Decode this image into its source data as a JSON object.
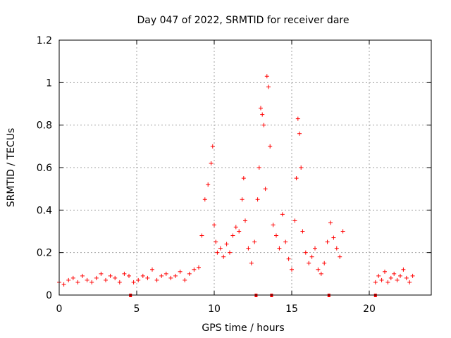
{
  "chart_data": {
    "type": "scatter",
    "title": "Day 047 of 2022, SRMTID for receiver dare",
    "xlabel": "GPS time / hours",
    "ylabel": "SRMTID / TECUs",
    "xlim": [
      0,
      24
    ],
    "ylim": [
      0,
      1.2
    ],
    "x_ticks": [
      0,
      5,
      10,
      15,
      20
    ],
    "x_tick_labels": [
      "0",
      "5",
      "10",
      "15",
      "20"
    ],
    "y_ticks": [
      0,
      0.2,
      0.4,
      0.6,
      0.8,
      1.0,
      1.2
    ],
    "y_tick_labels": [
      "0",
      "0.2",
      "0.4",
      "0.6",
      "0.8",
      "1",
      "1.2"
    ],
    "grid": true,
    "marker": "+",
    "series_color": "#ff0000",
    "data_gaps_hours": [
      18.3,
      20.4
    ],
    "outage_markers_hours": [
      4.6,
      12.7,
      13.7,
      17.4,
      20.4
    ],
    "series": [
      {
        "name": "SRMTID",
        "x": [
          0.0,
          0.3,
          0.6,
          0.9,
          1.2,
          1.5,
          1.8,
          2.1,
          2.4,
          2.7,
          3.0,
          3.3,
          3.6,
          3.9,
          4.2,
          4.5,
          4.8,
          5.1,
          5.4,
          5.7,
          6.0,
          6.3,
          6.6,
          6.9,
          7.2,
          7.5,
          7.8,
          8.1,
          8.4,
          8.7,
          9.0,
          9.2,
          9.4,
          9.6,
          9.8,
          9.9,
          10.0,
          10.1,
          10.2,
          10.4,
          10.6,
          10.8,
          11.0,
          11.2,
          11.4,
          11.6,
          11.8,
          11.9,
          12.0,
          12.2,
          12.4,
          12.6,
          12.8,
          12.9,
          13.0,
          13.1,
          13.2,
          13.3,
          13.4,
          13.5,
          13.6,
          13.8,
          14.0,
          14.2,
          14.4,
          14.6,
          14.8,
          15.0,
          15.2,
          15.3,
          15.4,
          15.5,
          15.6,
          15.7,
          15.9,
          16.1,
          16.3,
          16.5,
          16.7,
          16.9,
          17.1,
          17.3,
          17.5,
          17.7,
          17.9,
          18.1,
          18.3,
          20.4,
          20.6,
          20.8,
          21.0,
          21.2,
          21.4,
          21.6,
          21.8,
          22.0,
          22.2,
          22.4,
          22.6,
          22.8
        ],
        "y": [
          0.06,
          0.05,
          0.07,
          0.08,
          0.06,
          0.09,
          0.07,
          0.06,
          0.08,
          0.1,
          0.07,
          0.09,
          0.08,
          0.06,
          0.1,
          0.09,
          0.06,
          0.07,
          0.09,
          0.08,
          0.12,
          0.07,
          0.09,
          0.1,
          0.08,
          0.09,
          0.11,
          0.07,
          0.1,
          0.12,
          0.13,
          0.28,
          0.45,
          0.52,
          0.62,
          0.7,
          0.33,
          0.25,
          0.2,
          0.22,
          0.18,
          0.24,
          0.2,
          0.28,
          0.32,
          0.3,
          0.45,
          0.55,
          0.35,
          0.22,
          0.15,
          0.25,
          0.45,
          0.6,
          0.88,
          0.85,
          0.8,
          0.5,
          1.03,
          0.98,
          0.7,
          0.33,
          0.28,
          0.22,
          0.38,
          0.25,
          0.17,
          0.12,
          0.35,
          0.55,
          0.83,
          0.76,
          0.6,
          0.3,
          0.2,
          0.15,
          0.18,
          0.22,
          0.12,
          0.1,
          0.15,
          0.25,
          0.34,
          0.27,
          0.22,
          0.18,
          0.3,
          0.06,
          0.09,
          0.07,
          0.11,
          0.06,
          0.08,
          0.1,
          0.07,
          0.09,
          0.12,
          0.08,
          0.06,
          0.09
        ]
      }
    ]
  }
}
